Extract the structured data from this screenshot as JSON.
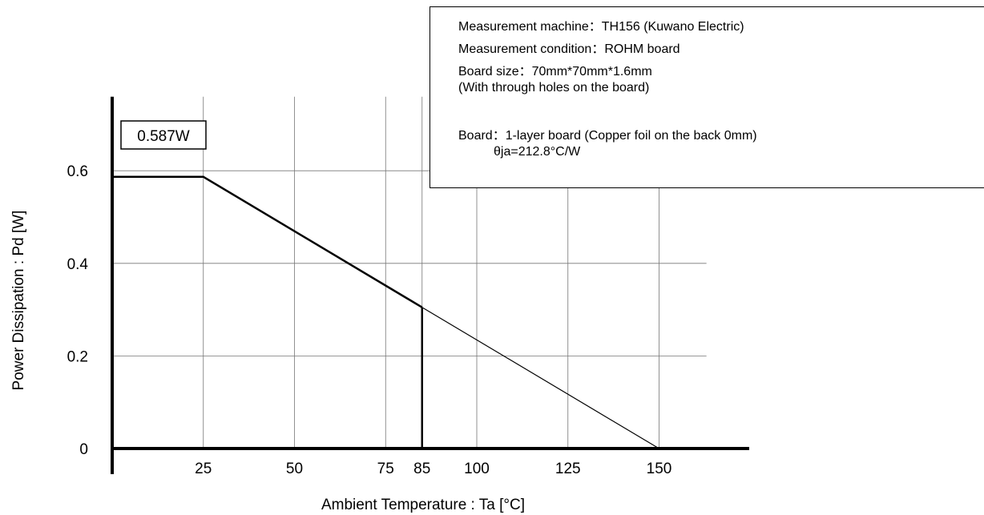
{
  "chart_data": {
    "type": "line",
    "xlabel": "Ambient Temperature : Ta [°C]",
    "ylabel": "Power Dissipation : Pd [W]",
    "xlim": [
      0,
      163
    ],
    "ylim": [
      0,
      0.76
    ],
    "x_ticks": [
      25,
      50,
      75,
      85,
      100,
      125,
      150
    ],
    "y_ticks": [
      0,
      0.2,
      0.4,
      0.6
    ],
    "grid": true,
    "series": [
      {
        "x": [
          0,
          25,
          85
        ],
        "y": [
          0.587,
          0.587,
          0.305
        ],
        "style": "solid"
      },
      {
        "x": [
          85,
          150
        ],
        "y": [
          0.305,
          0
        ],
        "style": "thin"
      }
    ],
    "annotations": [
      {
        "text": "0.587W",
        "value": 0.587
      }
    ],
    "notes": [
      "Measurement machine：TH156 (Kuwano Electric)",
      "Measurement condition：ROHM board",
      "Board size：70mm*70mm*1.6mm",
      "(With through holes on the board)",
      "Board：1-layer board (Copper foil on the back 0mm)",
      "θja=212.8°C/W"
    ]
  }
}
